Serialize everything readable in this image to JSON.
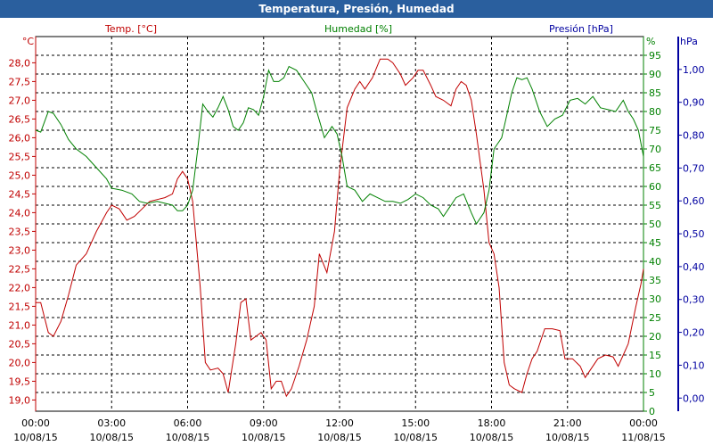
{
  "window": {
    "title": "Temperatura, Presión, Humedad"
  },
  "colors": {
    "temp": "#c00000",
    "hum": "#008000",
    "pres": "#0000a0",
    "titlebar": "#2a5f9e",
    "grid": "#000000"
  },
  "chart_data": {
    "type": "line",
    "grid": true,
    "x_ticks": [
      {
        "time": "00:00",
        "date": "10/08/15"
      },
      {
        "time": "03:00",
        "date": "10/08/15"
      },
      {
        "time": "06:00",
        "date": "10/08/15"
      },
      {
        "time": "09:00",
        "date": "10/08/15"
      },
      {
        "time": "12:00",
        "date": "10/08/15"
      },
      {
        "time": "15:00",
        "date": "10/08/15"
      },
      {
        "time": "18:00",
        "date": "10/08/15"
      },
      {
        "time": "21:00",
        "date": "10/08/15"
      },
      {
        "time": "00:00",
        "date": "11/08/15"
      }
    ],
    "x_range_hours": [
      0,
      24
    ],
    "axes": {
      "temp": {
        "label": "Temp. [°C]",
        "unit": "°C",
        "ylim": [
          18.7,
          28.7
        ],
        "ticks": [
          "28,0",
          "27,5",
          "27,0",
          "26,5",
          "26,0",
          "25,5",
          "25,0",
          "24,5",
          "24,0",
          "23,5",
          "23,0",
          "22,5",
          "22,0",
          "21,5",
          "21,0",
          "20,5",
          "20,0",
          "19,5",
          "19,0"
        ],
        "tick_values": [
          28.0,
          27.5,
          27.0,
          26.5,
          26.0,
          25.5,
          25.0,
          24.5,
          24.0,
          23.5,
          23.0,
          22.5,
          22.0,
          21.5,
          21.0,
          20.5,
          20.0,
          19.5,
          19.0
        ]
      },
      "hum": {
        "label": "Humedad [%]",
        "unit": "%",
        "ylim": [
          0,
          100
        ],
        "ticks": [
          "95",
          "90",
          "85",
          "80",
          "75",
          "70",
          "65",
          "60",
          "55",
          "50",
          "45",
          "40",
          "35",
          "30",
          "25",
          "20",
          "15",
          "10",
          "5",
          "0"
        ],
        "tick_values": [
          95,
          90,
          85,
          80,
          75,
          70,
          65,
          60,
          55,
          50,
          45,
          40,
          35,
          30,
          25,
          20,
          15,
          10,
          5,
          0
        ]
      },
      "pres": {
        "label": "Presión [hPa]",
        "unit": "hPa",
        "ylim": [
          -0.04,
          1.1
        ],
        "ticks": [
          "1,00",
          "0,90",
          "0,80",
          "0,70",
          "0,60",
          "0,50",
          "0,40",
          "0,30",
          "0,20",
          "0,10",
          "0,00"
        ],
        "tick_values": [
          1.0,
          0.9,
          0.8,
          0.7,
          0.6,
          0.5,
          0.4,
          0.3,
          0.2,
          0.1,
          0.0
        ]
      }
    },
    "series": [
      {
        "name": "Temp. [°C]",
        "axis": "temp",
        "points": [
          [
            0,
            21.6
          ],
          [
            0.2,
            21.6
          ],
          [
            0.5,
            20.8
          ],
          [
            0.7,
            20.7
          ],
          [
            1.0,
            21.1
          ],
          [
            1.3,
            21.8
          ],
          [
            1.6,
            22.6
          ],
          [
            2.0,
            22.9
          ],
          [
            2.4,
            23.5
          ],
          [
            2.8,
            24.0
          ],
          [
            3.0,
            24.2
          ],
          [
            3.3,
            24.1
          ],
          [
            3.6,
            23.8
          ],
          [
            3.9,
            23.9
          ],
          [
            4.2,
            24.1
          ],
          [
            4.5,
            24.3
          ],
          [
            4.8,
            24.35
          ],
          [
            5.1,
            24.4
          ],
          [
            5.4,
            24.5
          ],
          [
            5.6,
            24.9
          ],
          [
            5.8,
            25.1
          ],
          [
            6.0,
            24.9
          ],
          [
            6.2,
            24.3
          ],
          [
            6.5,
            22.0
          ],
          [
            6.7,
            20.0
          ],
          [
            6.9,
            19.8
          ],
          [
            7.2,
            19.85
          ],
          [
            7.4,
            19.7
          ],
          [
            7.6,
            19.2
          ],
          [
            7.9,
            20.5
          ],
          [
            8.1,
            21.6
          ],
          [
            8.3,
            21.7
          ],
          [
            8.5,
            20.6
          ],
          [
            8.7,
            20.7
          ],
          [
            8.9,
            20.8
          ],
          [
            9.1,
            20.6
          ],
          [
            9.3,
            19.3
          ],
          [
            9.5,
            19.5
          ],
          [
            9.7,
            19.5
          ],
          [
            9.9,
            19.1
          ],
          [
            10.1,
            19.3
          ],
          [
            10.4,
            19.9
          ],
          [
            10.7,
            20.6
          ],
          [
            11.0,
            21.5
          ],
          [
            11.2,
            22.9
          ],
          [
            11.5,
            22.4
          ],
          [
            11.8,
            23.5
          ],
          [
            12.0,
            25.1
          ],
          [
            12.3,
            26.8
          ],
          [
            12.6,
            27.3
          ],
          [
            12.8,
            27.5
          ],
          [
            13.0,
            27.3
          ],
          [
            13.3,
            27.6
          ],
          [
            13.6,
            28.1
          ],
          [
            13.9,
            28.1
          ],
          [
            14.1,
            28.0
          ],
          [
            14.4,
            27.7
          ],
          [
            14.6,
            27.4
          ],
          [
            14.9,
            27.6
          ],
          [
            15.1,
            27.8
          ],
          [
            15.3,
            27.8
          ],
          [
            15.6,
            27.4
          ],
          [
            15.8,
            27.1
          ],
          [
            16.1,
            27.0
          ],
          [
            16.4,
            26.85
          ],
          [
            16.6,
            27.3
          ],
          [
            16.8,
            27.5
          ],
          [
            17.0,
            27.4
          ],
          [
            17.2,
            27.0
          ],
          [
            17.4,
            26.1
          ],
          [
            17.7,
            24.6
          ],
          [
            17.9,
            23.2
          ],
          [
            18.1,
            22.9
          ],
          [
            18.3,
            22.0
          ],
          [
            18.5,
            20.0
          ],
          [
            18.7,
            19.4
          ],
          [
            18.9,
            19.3
          ],
          [
            19.2,
            19.2
          ],
          [
            19.4,
            19.7
          ],
          [
            19.6,
            20.1
          ],
          [
            19.8,
            20.3
          ],
          [
            20.1,
            20.9
          ],
          [
            20.4,
            20.9
          ],
          [
            20.7,
            20.85
          ],
          [
            20.9,
            20.1
          ],
          [
            21.2,
            20.1
          ],
          [
            21.5,
            19.9
          ],
          [
            21.7,
            19.6
          ],
          [
            21.9,
            19.8
          ],
          [
            22.2,
            20.1
          ],
          [
            22.5,
            20.2
          ],
          [
            22.8,
            20.15
          ],
          [
            23.0,
            19.9
          ],
          [
            23.2,
            20.2
          ],
          [
            23.4,
            20.5
          ],
          [
            23.7,
            21.5
          ],
          [
            23.9,
            22.1
          ],
          [
            24.0,
            22.5
          ]
        ]
      },
      {
        "name": "Humedad [%]",
        "axis": "hum",
        "points": [
          [
            0,
            75
          ],
          [
            0.2,
            74.5
          ],
          [
            0.5,
            80
          ],
          [
            0.7,
            79.5
          ],
          [
            1.0,
            76.5
          ],
          [
            1.3,
            72.5
          ],
          [
            1.6,
            70
          ],
          [
            2.0,
            68
          ],
          [
            2.4,
            65
          ],
          [
            2.8,
            62
          ],
          [
            3.0,
            59.5
          ],
          [
            3.4,
            59
          ],
          [
            3.8,
            58
          ],
          [
            4.1,
            56
          ],
          [
            4.4,
            55.5
          ],
          [
            4.8,
            56
          ],
          [
            5.1,
            55.5
          ],
          [
            5.4,
            55
          ],
          [
            5.6,
            53.5
          ],
          [
            5.8,
            53.5
          ],
          [
            6.0,
            55
          ],
          [
            6.2,
            59
          ],
          [
            6.4,
            70
          ],
          [
            6.6,
            82
          ],
          [
            6.8,
            80
          ],
          [
            7.0,
            78.5
          ],
          [
            7.2,
            81
          ],
          [
            7.4,
            84
          ],
          [
            7.6,
            80.5
          ],
          [
            7.8,
            76
          ],
          [
            8.0,
            75
          ],
          [
            8.2,
            77
          ],
          [
            8.4,
            81
          ],
          [
            8.6,
            80.5
          ],
          [
            8.8,
            79
          ],
          [
            9.0,
            84
          ],
          [
            9.2,
            91
          ],
          [
            9.4,
            88
          ],
          [
            9.6,
            88
          ],
          [
            9.8,
            89
          ],
          [
            10.0,
            92
          ],
          [
            10.3,
            91
          ],
          [
            10.6,
            88
          ],
          [
            10.9,
            85
          ],
          [
            11.1,
            80
          ],
          [
            11.4,
            73
          ],
          [
            11.7,
            76
          ],
          [
            11.9,
            74
          ],
          [
            12.1,
            68
          ],
          [
            12.3,
            60
          ],
          [
            12.6,
            59
          ],
          [
            12.9,
            56
          ],
          [
            13.2,
            58
          ],
          [
            13.5,
            57
          ],
          [
            13.8,
            56
          ],
          [
            14.1,
            56
          ],
          [
            14.4,
            55.5
          ],
          [
            14.7,
            56.5
          ],
          [
            15.0,
            58
          ],
          [
            15.3,
            57
          ],
          [
            15.6,
            55
          ],
          [
            15.9,
            54
          ],
          [
            16.1,
            52
          ],
          [
            16.3,
            54
          ],
          [
            16.6,
            57
          ],
          [
            16.9,
            58
          ],
          [
            17.2,
            53
          ],
          [
            17.4,
            50
          ],
          [
            17.7,
            53
          ],
          [
            17.9,
            59
          ],
          [
            18.1,
            70
          ],
          [
            18.4,
            73
          ],
          [
            18.6,
            79
          ],
          [
            18.8,
            85
          ],
          [
            19.0,
            89
          ],
          [
            19.2,
            88.5
          ],
          [
            19.4,
            89
          ],
          [
            19.6,
            86
          ],
          [
            19.9,
            80
          ],
          [
            20.2,
            76
          ],
          [
            20.5,
            78
          ],
          [
            20.8,
            79
          ],
          [
            21.1,
            83
          ],
          [
            21.4,
            83.5
          ],
          [
            21.7,
            82
          ],
          [
            22.0,
            84
          ],
          [
            22.3,
            81
          ],
          [
            22.6,
            80.5
          ],
          [
            22.9,
            80
          ],
          [
            23.2,
            83
          ],
          [
            23.4,
            80
          ],
          [
            23.6,
            78
          ],
          [
            23.8,
            75
          ],
          [
            24.0,
            68
          ]
        ]
      },
      {
        "name": "Presión [hPa]",
        "axis": "pres",
        "points": []
      }
    ]
  }
}
